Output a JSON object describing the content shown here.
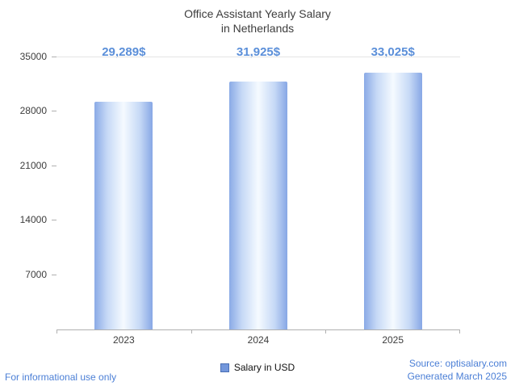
{
  "chart_data": {
    "type": "bar",
    "title": "Office Assistant Yearly Salary\nin Netherlands",
    "categories": [
      "2023",
      "2024",
      "2025"
    ],
    "values": [
      29289,
      31925,
      33025
    ],
    "value_labels": [
      "29,289$",
      "31,925$",
      "33,025$"
    ],
    "ylim": [
      0,
      35000
    ],
    "yticks": [
      7000,
      14000,
      21000,
      28000,
      35000
    ],
    "legend": "Salary in USD",
    "xlabel": "",
    "ylabel": "",
    "grid": false,
    "legend_position": "bottom-center"
  },
  "footer": {
    "disclaimer": "For informational use only",
    "source": "Source: optisalary.com",
    "generated": "Generated March 2025"
  },
  "colors": {
    "value_label": "#5b8fd9",
    "footer_text": "#4b7fd6",
    "bar_edge": "#8aaae6",
    "bar_center": "#f5faff",
    "axis_line": "#b0b0b0",
    "title_text": "#3d3d3d",
    "legend_swatch": "#7397dc"
  }
}
